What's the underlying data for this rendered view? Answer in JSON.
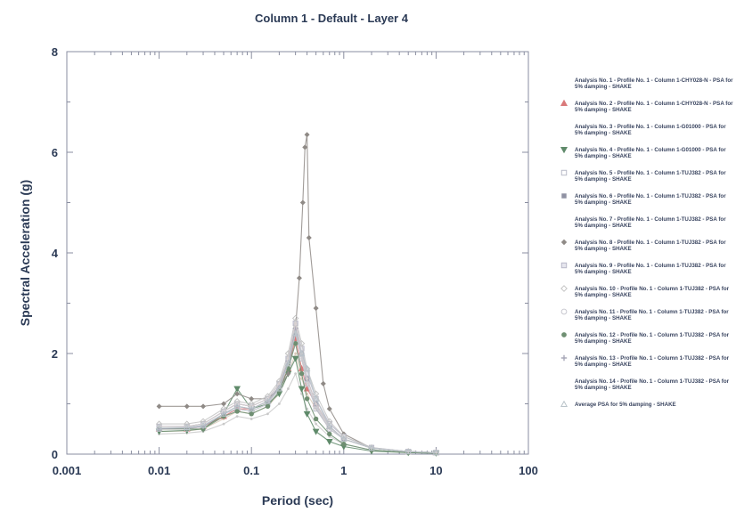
{
  "chart_data": {
    "type": "scatter",
    "title": "Column 1 - Default - Layer 4",
    "xlabel": "Period (sec)",
    "ylabel": "Spectral Acceleration (g)",
    "xscale": "log",
    "xlim": [
      0.001,
      100
    ],
    "ylim": [
      0,
      8
    ],
    "x_ticks": [
      "0.001",
      "0.01",
      "0.1",
      "1",
      "10",
      "100"
    ],
    "y_ticks": [
      "0",
      "2",
      "4",
      "6",
      "8"
    ],
    "grid": false,
    "legend_position": "right",
    "series": [
      {
        "name": "Analysis No. 1 - Profile No. 1 - Column 1-CHY028-N - PSA for 5% damping - SHAKE",
        "marker": "none",
        "color": "#d9c9b8",
        "x": [
          0.01,
          0.02,
          0.03,
          0.05,
          0.07,
          0.1,
          0.15,
          0.2,
          0.25,
          0.3,
          0.35,
          0.4,
          0.5,
          0.7,
          1,
          2,
          5,
          10
        ],
        "y": [
          0.45,
          0.46,
          0.5,
          0.7,
          0.85,
          0.8,
          0.95,
          1.2,
          1.6,
          2.0,
          1.5,
          1.2,
          0.9,
          0.5,
          0.3,
          0.12,
          0.05,
          0.03
        ]
      },
      {
        "name": "Analysis No. 2 - Profile No. 1 - Column 1-CHY028-N - PSA for 5% damping - SHAKE",
        "marker": "triangle-up",
        "color": "#d9797a",
        "x": [
          0.01,
          0.02,
          0.03,
          0.05,
          0.07,
          0.1,
          0.15,
          0.2,
          0.25,
          0.3,
          0.35,
          0.4,
          0.5,
          0.7,
          1,
          2,
          5,
          10
        ],
        "y": [
          0.5,
          0.5,
          0.55,
          0.75,
          0.9,
          0.9,
          1.05,
          1.3,
          1.7,
          2.3,
          1.7,
          1.3,
          1.0,
          0.55,
          0.3,
          0.12,
          0.05,
          0.03
        ]
      },
      {
        "name": "Analysis No. 3 - Profile No. 1 - Column 1-G01000 - PSA for 5% damping - SHAKE",
        "marker": "none",
        "color": "#c9c9c9",
        "x": [
          0.01,
          0.02,
          0.03,
          0.05,
          0.07,
          0.1,
          0.15,
          0.2,
          0.25,
          0.3,
          0.35,
          0.4,
          0.5,
          0.7,
          1,
          2,
          5,
          10
        ],
        "y": [
          0.4,
          0.42,
          0.45,
          0.6,
          0.75,
          0.7,
          0.8,
          1.0,
          1.3,
          1.6,
          1.2,
          0.9,
          0.6,
          0.35,
          0.2,
          0.08,
          0.03,
          0.02
        ]
      },
      {
        "name": "Analysis No. 4 - Profile No. 1 - Column 1-G01000 - PSA for 5% damping - SHAKE",
        "marker": "triangle-down",
        "color": "#5f8a6a",
        "x": [
          0.01,
          0.02,
          0.03,
          0.05,
          0.07,
          0.1,
          0.15,
          0.2,
          0.25,
          0.3,
          0.35,
          0.4,
          0.5,
          0.7,
          1,
          2,
          5,
          10
        ],
        "y": [
          0.45,
          0.47,
          0.5,
          0.8,
          1.3,
          0.9,
          1.0,
          1.2,
          1.6,
          1.9,
          1.3,
          0.8,
          0.45,
          0.25,
          0.15,
          0.06,
          0.03,
          0.02
        ]
      },
      {
        "name": "Analysis No. 5 - Profile No. 1 - Column 1-TUJ382 - PSA for 5% damping - SHAKE",
        "marker": "square-open",
        "color": "#b8bcc8",
        "x": [
          0.01,
          0.02,
          0.03,
          0.05,
          0.07,
          0.1,
          0.15,
          0.2,
          0.25,
          0.3,
          0.35,
          0.4,
          0.5,
          0.7,
          1,
          2,
          5,
          10
        ],
        "y": [
          0.5,
          0.52,
          0.55,
          0.8,
          0.9,
          0.85,
          1.0,
          1.3,
          1.8,
          2.4,
          1.9,
          1.4,
          0.9,
          0.5,
          0.3,
          0.12,
          0.05,
          0.03
        ]
      },
      {
        "name": "Analysis No. 6 - Profile No. 1 - Column 1-TUJ382 - PSA for 5% damping - SHAKE",
        "marker": "square",
        "color": "#8f91a3",
        "x": [
          0.01,
          0.02,
          0.03,
          0.05,
          0.07,
          0.1,
          0.15,
          0.2,
          0.25,
          0.3,
          0.35,
          0.4,
          0.5,
          0.7,
          1,
          2,
          5,
          10
        ],
        "y": [
          0.55,
          0.55,
          0.6,
          0.85,
          1.0,
          0.95,
          1.1,
          1.4,
          1.9,
          2.6,
          2.0,
          1.5,
          1.0,
          0.55,
          0.3,
          0.12,
          0.05,
          0.03
        ]
      },
      {
        "name": "Analysis No. 7 - Profile No. 1 - Column 1-TUJ382 - PSA for 5% damping - SHAKE",
        "marker": "none",
        "color": "#d4d4d4",
        "x": [
          0.01,
          0.02,
          0.03,
          0.05,
          0.07,
          0.1,
          0.15,
          0.2,
          0.25,
          0.3,
          0.35,
          0.4,
          0.5,
          0.7,
          1,
          2,
          5,
          10
        ],
        "y": [
          0.5,
          0.5,
          0.55,
          0.8,
          0.95,
          0.9,
          1.05,
          1.35,
          1.8,
          2.5,
          1.9,
          1.4,
          0.95,
          0.5,
          0.3,
          0.12,
          0.05,
          0.03
        ]
      },
      {
        "name": "Analysis No. 8 - Profile No. 1 - Column 1-TUJ382 - PSA for 5% damping - SHAKE",
        "marker": "diamond",
        "color": "#8f8a86",
        "x": [
          0.01,
          0.02,
          0.03,
          0.05,
          0.07,
          0.1,
          0.15,
          0.2,
          0.25,
          0.3,
          0.33,
          0.36,
          0.38,
          0.4,
          0.42,
          0.5,
          0.6,
          0.7,
          1,
          2,
          5,
          10
        ],
        "y": [
          0.95,
          0.95,
          0.95,
          1.0,
          1.2,
          1.1,
          1.1,
          1.3,
          1.6,
          2.5,
          3.5,
          5.0,
          6.1,
          6.35,
          4.3,
          2.9,
          1.4,
          0.9,
          0.4,
          0.12,
          0.05,
          0.03
        ]
      },
      {
        "name": "Analysis No. 9 - Profile No. 1 - Column 1-TUJ382 - PSA for 5% damping - SHAKE",
        "marker": "square-x",
        "color": "#b8b8c8",
        "x": [
          0.01,
          0.02,
          0.03,
          0.05,
          0.07,
          0.1,
          0.15,
          0.2,
          0.25,
          0.3,
          0.35,
          0.4,
          0.5,
          0.7,
          1,
          2,
          5,
          10
        ],
        "y": [
          0.55,
          0.55,
          0.6,
          0.85,
          1.0,
          0.95,
          1.1,
          1.4,
          1.9,
          2.6,
          2.1,
          1.6,
          1.1,
          0.6,
          0.35,
          0.13,
          0.05,
          0.03
        ]
      },
      {
        "name": "Analysis No. 10 - Profile No. 1 - Column 1-TUJ382 - PSA for 5% damping - SHAKE",
        "marker": "diamond-open",
        "color": "#c4c4c4",
        "x": [
          0.01,
          0.02,
          0.03,
          0.05,
          0.07,
          0.1,
          0.15,
          0.2,
          0.25,
          0.3,
          0.35,
          0.4,
          0.5,
          0.7,
          1,
          2,
          5,
          10
        ],
        "y": [
          0.6,
          0.6,
          0.65,
          0.9,
          1.05,
          1.0,
          1.15,
          1.45,
          2.0,
          2.7,
          2.2,
          1.7,
          1.2,
          0.65,
          0.35,
          0.13,
          0.05,
          0.03
        ]
      },
      {
        "name": "Analysis No. 11 - Profile No. 1 - Column 1-TUJ382 - PSA for 5% damping - SHAKE",
        "marker": "circle-open",
        "color": "#c8c8d0",
        "x": [
          0.01,
          0.02,
          0.03,
          0.05,
          0.07,
          0.1,
          0.15,
          0.2,
          0.25,
          0.3,
          0.35,
          0.4,
          0.5,
          0.7,
          1,
          2,
          5,
          10
        ],
        "y": [
          0.5,
          0.5,
          0.55,
          0.8,
          0.9,
          0.85,
          1.0,
          1.3,
          1.8,
          2.4,
          1.9,
          1.4,
          0.95,
          0.5,
          0.3,
          0.12,
          0.05,
          0.03
        ]
      },
      {
        "name": "Analysis No. 12 - Profile No. 1 - Column 1-TUJ382 - PSA for 5% damping - SHAKE",
        "marker": "circle",
        "color": "#6f8f72",
        "x": [
          0.01,
          0.02,
          0.03,
          0.05,
          0.07,
          0.1,
          0.15,
          0.2,
          0.25,
          0.3,
          0.35,
          0.4,
          0.5,
          0.7,
          1,
          2,
          5,
          10
        ],
        "y": [
          0.5,
          0.5,
          0.5,
          0.75,
          0.85,
          0.8,
          0.95,
          1.25,
          1.7,
          2.2,
          1.6,
          1.1,
          0.7,
          0.4,
          0.2,
          0.08,
          0.03,
          0.02
        ]
      },
      {
        "name": "Analysis No. 13 - Profile No. 1 - Column 1-TUJ382 - PSA for 5% damping - SHAKE",
        "marker": "plus",
        "color": "#a8a8b8",
        "x": [
          0.01,
          0.02,
          0.03,
          0.05,
          0.07,
          0.1,
          0.15,
          0.2,
          0.25,
          0.3,
          0.35,
          0.4,
          0.5,
          0.7,
          1,
          2,
          5,
          10
        ],
        "y": [
          0.5,
          0.52,
          0.55,
          0.8,
          0.95,
          0.9,
          1.05,
          1.35,
          1.85,
          2.5,
          2.0,
          1.5,
          1.0,
          0.55,
          0.3,
          0.12,
          0.05,
          0.03
        ]
      },
      {
        "name": "Analysis No. 14 - Profile No. 1 - Column 1-TUJ382 - PSA for 5% damping - SHAKE",
        "marker": "none",
        "color": "#d8d0d0",
        "x": [
          0.01,
          0.02,
          0.03,
          0.05,
          0.07,
          0.1,
          0.15,
          0.2,
          0.25,
          0.3,
          0.35,
          0.4,
          0.5,
          0.7,
          1,
          2,
          5,
          10
        ],
        "y": [
          0.55,
          0.55,
          0.6,
          0.85,
          1.0,
          0.95,
          1.1,
          1.4,
          1.9,
          2.6,
          2.0,
          1.5,
          1.0,
          0.55,
          0.3,
          0.12,
          0.05,
          0.03
        ]
      },
      {
        "name": "Average PSA for 5% damping - SHAKE",
        "marker": "triangle-open",
        "color": "#b9c3c9",
        "x": [
          0.01,
          0.02,
          0.03,
          0.05,
          0.07,
          0.1,
          0.15,
          0.2,
          0.25,
          0.3,
          0.35,
          0.4,
          0.5,
          0.7,
          1,
          2,
          5,
          10
        ],
        "y": [
          0.52,
          0.53,
          0.57,
          0.8,
          0.95,
          0.9,
          1.05,
          1.3,
          1.8,
          2.4,
          2.0,
          1.7,
          1.1,
          0.55,
          0.3,
          0.12,
          0.05,
          0.03
        ]
      }
    ]
  }
}
